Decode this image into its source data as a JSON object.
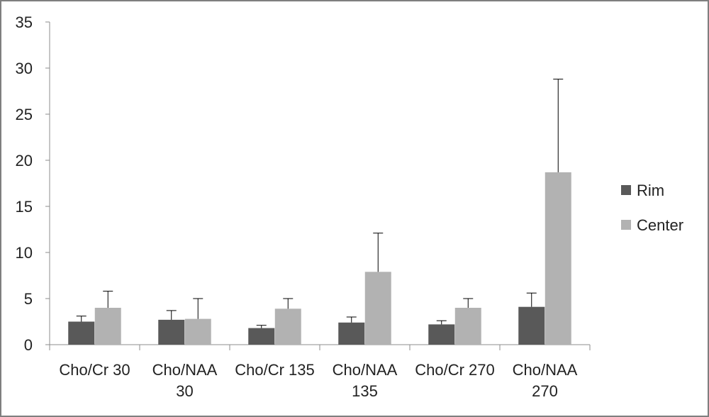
{
  "chart_data": {
    "type": "bar",
    "categories": [
      [
        "Cho/Cr 30"
      ],
      [
        "Cho/NAA",
        "30"
      ],
      [
        "Cho/Cr 135"
      ],
      [
        "Cho/NAA",
        "135"
      ],
      [
        "Cho/Cr 270"
      ],
      [
        "Cho/NAA",
        "270"
      ]
    ],
    "series": [
      {
        "name": "Rim",
        "color": "#595959",
        "values": [
          2.5,
          2.7,
          1.8,
          2.4,
          2.2,
          4.1
        ],
        "errors": [
          0.6,
          1.0,
          0.3,
          0.6,
          0.4,
          1.5
        ]
      },
      {
        "name": "Center",
        "color": "#b2b2b2",
        "values": [
          4.0,
          2.8,
          3.9,
          7.9,
          4.0,
          18.7
        ],
        "errors": [
          1.8,
          2.2,
          1.1,
          4.2,
          1.0,
          10.1
        ]
      }
    ],
    "yticks": [
      0,
      5,
      10,
      15,
      20,
      25,
      30,
      35
    ],
    "ylim": [
      0,
      35
    ],
    "legend_position": "right",
    "grid": false
  }
}
